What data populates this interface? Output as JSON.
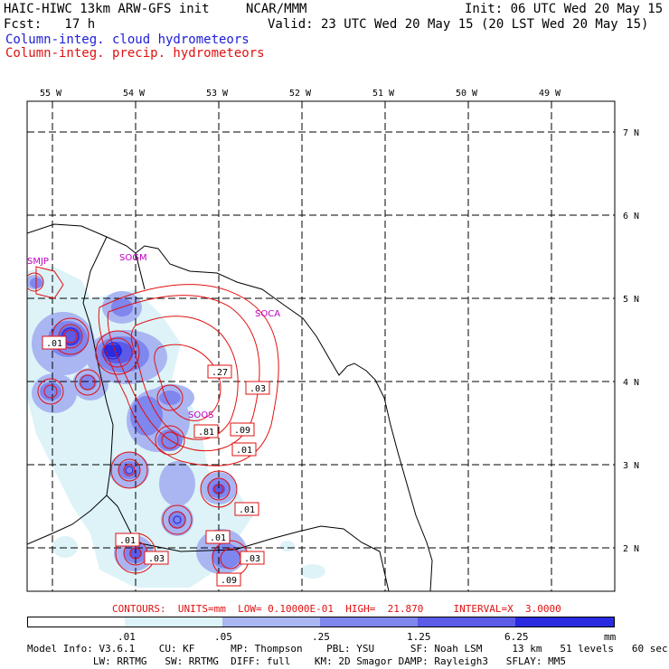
{
  "header": {
    "model_line": "HAIC-HIWC 13km ARW-GFS init",
    "org": "NCAR/MMM",
    "init": "Init: 06 UTC Wed 20 May 15",
    "fcst": "Fcst:   17 h",
    "valid": "Valid: 23 UTC Wed 20 May 15 (20 LST Wed 20 May 15)",
    "field1": "Column-integ. cloud hydrometeors",
    "field2": "Column-integ. precip. hydrometeors"
  },
  "map": {
    "lon_labels": [
      "55 W",
      "54 W",
      "53 W",
      "52 W",
      "51 W",
      "50 W",
      "49 W"
    ],
    "lat_labels": [
      "7 N",
      "6 N",
      "5 N",
      "4 N",
      "3 N",
      "2 N"
    ],
    "stations": [
      "SMJP",
      "SOGM",
      "SOCA",
      "SOOS"
    ],
    "contour_labels": [
      ".01",
      ".27",
      ".03",
      ".81",
      ".09",
      ".01",
      ".01",
      ".01",
      ".01",
      ".03",
      ".03",
      ".09"
    ],
    "colors": {
      "cloud_line": "#1d1dd6",
      "precip_line": "#e01010",
      "station": "#c000c0",
      "shade_levels": [
        "#ffffff",
        "#ddf3f8",
        "#a9b6f2",
        "#7f86ee",
        "#5b5be8",
        "#2a2ae0"
      ]
    }
  },
  "contour_info": "CONTOURS:  UNITS=mm  LOW= 0.10000E-01  HIGH=  21.870     INTERVAL=X  3.0000",
  "colorbar": {
    "ticks": [
      ".01",
      ".05",
      ".25",
      "1.25",
      "6.25"
    ],
    "units": "mm"
  },
  "footer": {
    "line1": "Model Info: V3.6.1    CU: KF      MP: Thompson    PBL: YSU      SF: Noah LSM     13 km   51 levels   60 sec",
    "line2": "           LW: RRTMG   SW: RRTMG  DIFF: full    KM: 2D Smagor DAMP: Rayleigh3   SFLAY: MM5"
  }
}
